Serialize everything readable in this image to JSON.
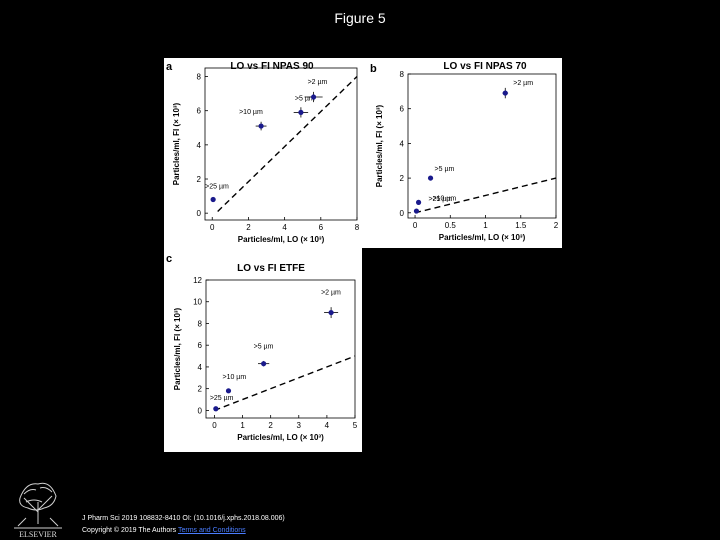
{
  "slide_title": "Figure 5",
  "footer": {
    "citation": "J Pharm Sci 2019 108832-8410 OI: (10.1016/j.xphs.2018.08.006)",
    "copyright_prefix": "Copyright © 2019 The Authors",
    "copyright_link": "Terms and Conditions"
  },
  "logo": {
    "text": "ELSEVIER"
  },
  "colors": {
    "points": "#1a1a8c",
    "dashed_line": "#000000",
    "text": "#000000"
  },
  "chart_data": [
    {
      "panel": "a",
      "type": "scatter",
      "title": "LO vs FI NPAS 90",
      "xlabel": "Particles/ml, LO (× 10³)",
      "ylabel": "Particles/ml, FI (× 10³)",
      "xlim": [
        -0.4,
        8
      ],
      "ylim": [
        -0.4,
        8.5
      ],
      "xticks": [
        0,
        2,
        4,
        6,
        8
      ],
      "yticks": [
        0,
        2,
        4,
        6,
        8
      ],
      "points": [
        {
          "label": ">25 µm",
          "x": 0.05,
          "y": 0.8,
          "xerr": 0,
          "yerr": 0
        },
        {
          "label": ">10 µm",
          "x": 2.7,
          "y": 5.1,
          "xerr": 0.3,
          "yerr": 0.25
        },
        {
          "label": ">5 µm",
          "x": 4.9,
          "y": 5.9,
          "xerr": 0.4,
          "yerr": 0.3
        },
        {
          "label": ">2 µm",
          "x": 5.6,
          "y": 6.8,
          "xerr": 0.5,
          "yerr": 0.3
        }
      ],
      "reference_line": {
        "style": "dashed",
        "x": [
          0.3,
          8
        ],
        "y": [
          0.1,
          8
        ]
      }
    },
    {
      "panel": "b",
      "type": "scatter",
      "title": "LO vs FI NPAS 70",
      "xlabel": "Particles/ml, LO (× 10³)",
      "ylabel": "Particles/ml, FI (× 10³)",
      "xlim": [
        -0.1,
        2
      ],
      "ylim": [
        -0.3,
        8
      ],
      "xticks": [
        0,
        0.5,
        1,
        1.5,
        2
      ],
      "yticks": [
        0,
        2,
        4,
        6,
        8
      ],
      "points": [
        {
          "label": ">25 µm",
          "x": 0.02,
          "y": 0.1,
          "xerr": 0,
          "yerr": 0
        },
        {
          "label": ">10 µm",
          "x": 0.05,
          "y": 0.6,
          "xerr": 0,
          "yerr": 0
        },
        {
          "label": ">5 µm",
          "x": 0.22,
          "y": 2.0,
          "xerr": 0,
          "yerr": 0
        },
        {
          "label": ">2 µm",
          "x": 1.28,
          "y": 6.9,
          "xerr": 0.04,
          "yerr": 0.3
        }
      ],
      "reference_line": {
        "style": "dashed",
        "x": [
          0,
          2
        ],
        "y": [
          0,
          2
        ]
      }
    },
    {
      "panel": "c",
      "type": "scatter",
      "title": "LO vs FI  ETFE",
      "xlabel": "Particles/ml, LO (× 10³)",
      "ylabel": "Particles/ml, FI (× 10³)",
      "xlim": [
        -0.3,
        5
      ],
      "ylim": [
        -0.7,
        12
      ],
      "xticks": [
        0,
        1,
        2,
        3,
        4,
        5
      ],
      "yticks": [
        0,
        2,
        4,
        6,
        8,
        10,
        12
      ],
      "points": [
        {
          "label": ">25 µm",
          "x": 0.05,
          "y": 0.15,
          "xerr": 0,
          "yerr": 0
        },
        {
          "label": ">10 µm",
          "x": 0.5,
          "y": 1.8,
          "xerr": 0,
          "yerr": 0
        },
        {
          "label": ">5 µm",
          "x": 1.75,
          "y": 4.3,
          "xerr": 0.2,
          "yerr": 0.25
        },
        {
          "label": ">2 µm",
          "x": 4.15,
          "y": 9.0,
          "xerr": 0.25,
          "yerr": 0.5
        }
      ],
      "reference_line": {
        "style": "dashed",
        "x": [
          0,
          5
        ],
        "y": [
          0,
          5
        ]
      }
    }
  ]
}
